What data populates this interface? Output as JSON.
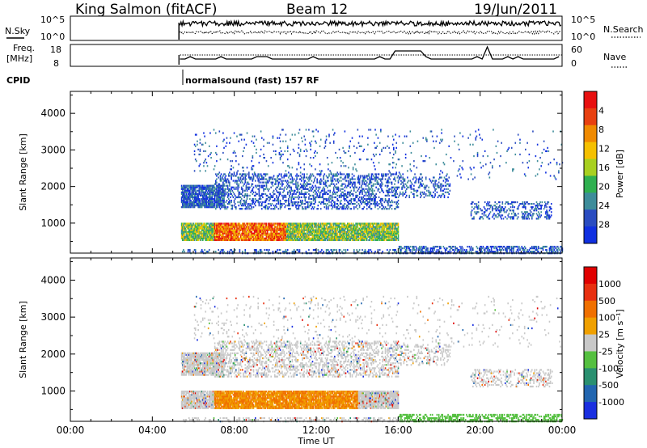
{
  "header": {
    "station": "King Salmon (fitACF)",
    "beam": "Beam 12",
    "date": "19/Jun/2011"
  },
  "top_panels": {
    "nsky_label": "N.Sky",
    "nsky_ticks": [
      "10^5",
      "10^0"
    ],
    "nsearch_label": "N.Search",
    "nsearch_ticks": [
      "10^5",
      "10^0"
    ],
    "freq_label_1": "Freq.",
    "freq_label_2": "[MHz]",
    "freq_ticks": [
      "18",
      "8"
    ],
    "nave_label": "Nave",
    "nave_ticks": [
      "60",
      "0"
    ],
    "cpid_label": "CPID",
    "cpid_text": "normalsound (fast) 157 RF"
  },
  "chart_data": [
    {
      "type": "heatmap",
      "name": "power",
      "ylabel": "Slant Range [km]",
      "ylim": [
        180,
        4600
      ],
      "yticks": [
        1000,
        2000,
        3000,
        4000
      ],
      "xlim": [
        0,
        24
      ],
      "x_ticks": [
        "00:00",
        "04:00",
        "08:00",
        "12:00",
        "16:00",
        "20:00",
        "00:00"
      ],
      "colorbar_label": "Power [dB]",
      "colorbar_ticks": [
        "4",
        "8",
        "12",
        "16",
        "20",
        "24",
        "28"
      ],
      "colorbar_colors": [
        "#1030e0",
        "#2a4cc0",
        "#3d8c9a",
        "#2fb050",
        "#a8d020",
        "#f5c000",
        "#f08a00",
        "#e84010",
        "#e81010"
      ],
      "data_start_hour": 5.3
    },
    {
      "type": "heatmap",
      "name": "velocity",
      "ylabel": "Slant Range [km]",
      "ylim": [
        180,
        4600
      ],
      "yticks": [
        1000,
        2000,
        3000,
        4000
      ],
      "xlim": [
        0,
        24
      ],
      "x_ticks": [
        "00:00",
        "04:00",
        "08:00",
        "12:00",
        "16:00",
        "20:00",
        "00:00"
      ],
      "xlabel": "Time UT",
      "colorbar_label": "Velocity [m s⁻¹]",
      "colorbar_ticks": [
        "1000",
        "500",
        "100",
        "25",
        "-25",
        "-100",
        "-500",
        "-1000"
      ],
      "colorbar_colors": [
        "#1a2fe0",
        "#2266b0",
        "#2a9070",
        "#55c040",
        "#c8c8c8",
        "#f0a000",
        "#f07000",
        "#e83010",
        "#e00000"
      ],
      "data_start_hour": 5.3
    }
  ]
}
